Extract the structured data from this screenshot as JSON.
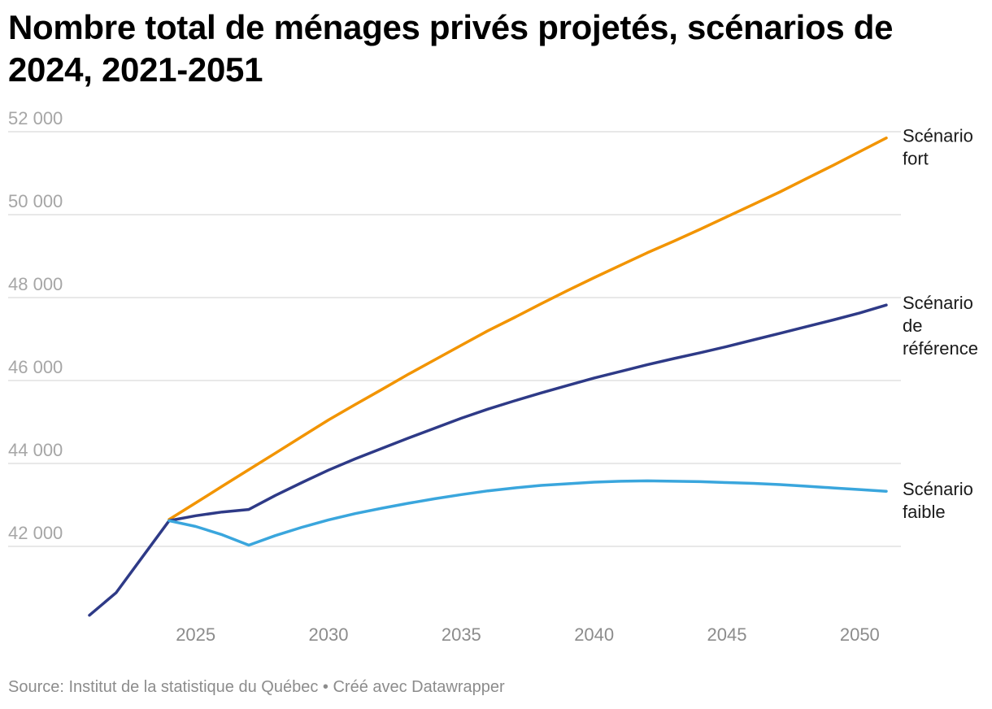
{
  "title": "Nombre total de ménages privés projetés, scénarios de 2024, 2021-2051",
  "footer": {
    "source": "Source: Institut de la statistique du Québec",
    "separator": " • ",
    "credit": "Créé avec Datawrapper"
  },
  "chart_data": {
    "type": "line",
    "title": "Nombre total de ménages privés projetés, scénarios de 2024, 2021-2051",
    "xlabel": "",
    "ylabel": "",
    "xlim": [
      2021,
      2051
    ],
    "ylim": [
      40000,
      52000
    ],
    "x_ticks": [
      2025,
      2030,
      2035,
      2040,
      2045,
      2050
    ],
    "y_ticks": [
      42000,
      44000,
      46000,
      48000,
      50000,
      52000
    ],
    "y_tick_labels": [
      "42 000",
      "44 000",
      "46 000",
      "48 000",
      "50 000",
      "52 000"
    ],
    "grid": "horizontal",
    "legend": "direct labels at line ends",
    "series": [
      {
        "name": "Scénario fort",
        "label_lines": [
          "Scénario",
          "fort"
        ],
        "color": "#f29400",
        "points": [
          [
            2024,
            42650
          ],
          [
            2025,
            43050
          ],
          [
            2026,
            43450
          ],
          [
            2027,
            43850
          ],
          [
            2028,
            44250
          ],
          [
            2029,
            44650
          ],
          [
            2030,
            45050
          ],
          [
            2031,
            45420
          ],
          [
            2032,
            45780
          ],
          [
            2033,
            46150
          ],
          [
            2034,
            46500
          ],
          [
            2035,
            46850
          ],
          [
            2036,
            47200
          ],
          [
            2037,
            47520
          ],
          [
            2038,
            47850
          ],
          [
            2039,
            48170
          ],
          [
            2040,
            48480
          ],
          [
            2041,
            48780
          ],
          [
            2042,
            49080
          ],
          [
            2043,
            49360
          ],
          [
            2044,
            49650
          ],
          [
            2045,
            49950
          ],
          [
            2046,
            50250
          ],
          [
            2047,
            50550
          ],
          [
            2048,
            50870
          ],
          [
            2049,
            51190
          ],
          [
            2050,
            51520
          ],
          [
            2051,
            51850
          ]
        ]
      },
      {
        "name": "Scénario de référence",
        "label_lines": [
          "Scénario",
          "de",
          "référence"
        ],
        "color": "#2e3a87",
        "points": [
          [
            2021,
            40340
          ],
          [
            2022,
            40880
          ],
          [
            2023,
            41750
          ],
          [
            2024,
            42620
          ],
          [
            2025,
            42740
          ],
          [
            2026,
            42830
          ],
          [
            2027,
            42890
          ],
          [
            2028,
            43230
          ],
          [
            2029,
            43540
          ],
          [
            2030,
            43840
          ],
          [
            2031,
            44110
          ],
          [
            2032,
            44360
          ],
          [
            2033,
            44610
          ],
          [
            2034,
            44850
          ],
          [
            2035,
            45090
          ],
          [
            2036,
            45310
          ],
          [
            2037,
            45510
          ],
          [
            2038,
            45700
          ],
          [
            2039,
            45880
          ],
          [
            2040,
            46060
          ],
          [
            2041,
            46220
          ],
          [
            2042,
            46380
          ],
          [
            2043,
            46530
          ],
          [
            2044,
            46670
          ],
          [
            2045,
            46820
          ],
          [
            2046,
            46980
          ],
          [
            2047,
            47140
          ],
          [
            2048,
            47300
          ],
          [
            2049,
            47460
          ],
          [
            2050,
            47630
          ],
          [
            2051,
            47820
          ]
        ]
      },
      {
        "name": "Scénario faible",
        "label_lines": [
          "Scénario",
          "faible"
        ],
        "color": "#3aa6dd",
        "points": [
          [
            2024,
            42620
          ],
          [
            2025,
            42480
          ],
          [
            2026,
            42280
          ],
          [
            2027,
            42030
          ],
          [
            2028,
            42260
          ],
          [
            2029,
            42460
          ],
          [
            2030,
            42640
          ],
          [
            2031,
            42790
          ],
          [
            2032,
            42920
          ],
          [
            2033,
            43040
          ],
          [
            2034,
            43150
          ],
          [
            2035,
            43250
          ],
          [
            2036,
            43340
          ],
          [
            2037,
            43410
          ],
          [
            2038,
            43470
          ],
          [
            2039,
            43510
          ],
          [
            2040,
            43550
          ],
          [
            2041,
            43570
          ],
          [
            2042,
            43580
          ],
          [
            2043,
            43570
          ],
          [
            2044,
            43560
          ],
          [
            2045,
            43540
          ],
          [
            2046,
            43520
          ],
          [
            2047,
            43490
          ],
          [
            2048,
            43450
          ],
          [
            2049,
            43410
          ],
          [
            2050,
            43370
          ],
          [
            2051,
            43330
          ]
        ]
      }
    ]
  }
}
